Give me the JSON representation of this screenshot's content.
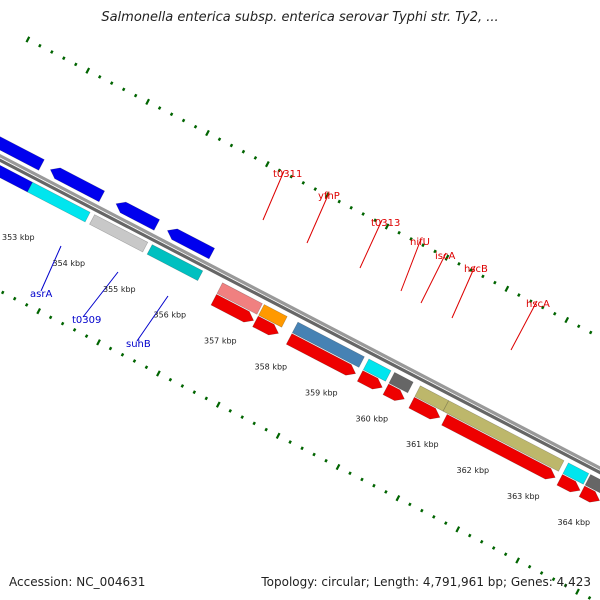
{
  "title": "Salmonella enterica subsp. enterica serovar Typhi str. Ty2, ...",
  "footer": {
    "accession": "Accession: NC_004631",
    "summary": "Topology: circular; Length: 4,791,961 bp; Genes: 4,423"
  },
  "scale": {
    "ticks": [
      {
        "label": "353 kbp"
      },
      {
        "label": "354 kbp"
      },
      {
        "label": "355 kbp"
      },
      {
        "label": "356 kbp"
      },
      {
        "label": "357 kbp"
      },
      {
        "label": "358 kbp"
      },
      {
        "label": "359 kbp"
      },
      {
        "label": "360 kbp"
      },
      {
        "label": "361 kbp"
      },
      {
        "label": "362 kbp"
      },
      {
        "label": "363 kbp"
      },
      {
        "label": "364 kbp"
      }
    ]
  },
  "gene_labels": [
    {
      "text": "asrA",
      "color": "#0000cc"
    },
    {
      "text": "t0309",
      "color": "#0000cc"
    },
    {
      "text": "suhB",
      "color": "#0000cc"
    },
    {
      "text": "t0311",
      "color": "#dd0000"
    },
    {
      "text": "yfhP",
      "color": "#dd0000"
    },
    {
      "text": "t0313",
      "color": "#dd0000"
    },
    {
      "text": "nifU",
      "color": "#dd0000"
    },
    {
      "text": "iscA",
      "color": "#dd0000"
    },
    {
      "text": "hscB",
      "color": "#dd0000"
    },
    {
      "text": "hscA",
      "color": "#dd0000"
    }
  ],
  "colors": {
    "forward_gene": "#ee0000",
    "reverse_gene": "#0000ee",
    "rna": "#00e5ee",
    "cog_blue": "#4682b4",
    "cog_olive": "#bdb76b",
    "cog_orange": "#ff9900",
    "cog_salmon": "#f08080",
    "cog_grey": "#666666",
    "cog_silver": "#c8c8c8",
    "cog_teal": "#00c0c0",
    "backbone": "#888888",
    "tick": "#006400"
  }
}
